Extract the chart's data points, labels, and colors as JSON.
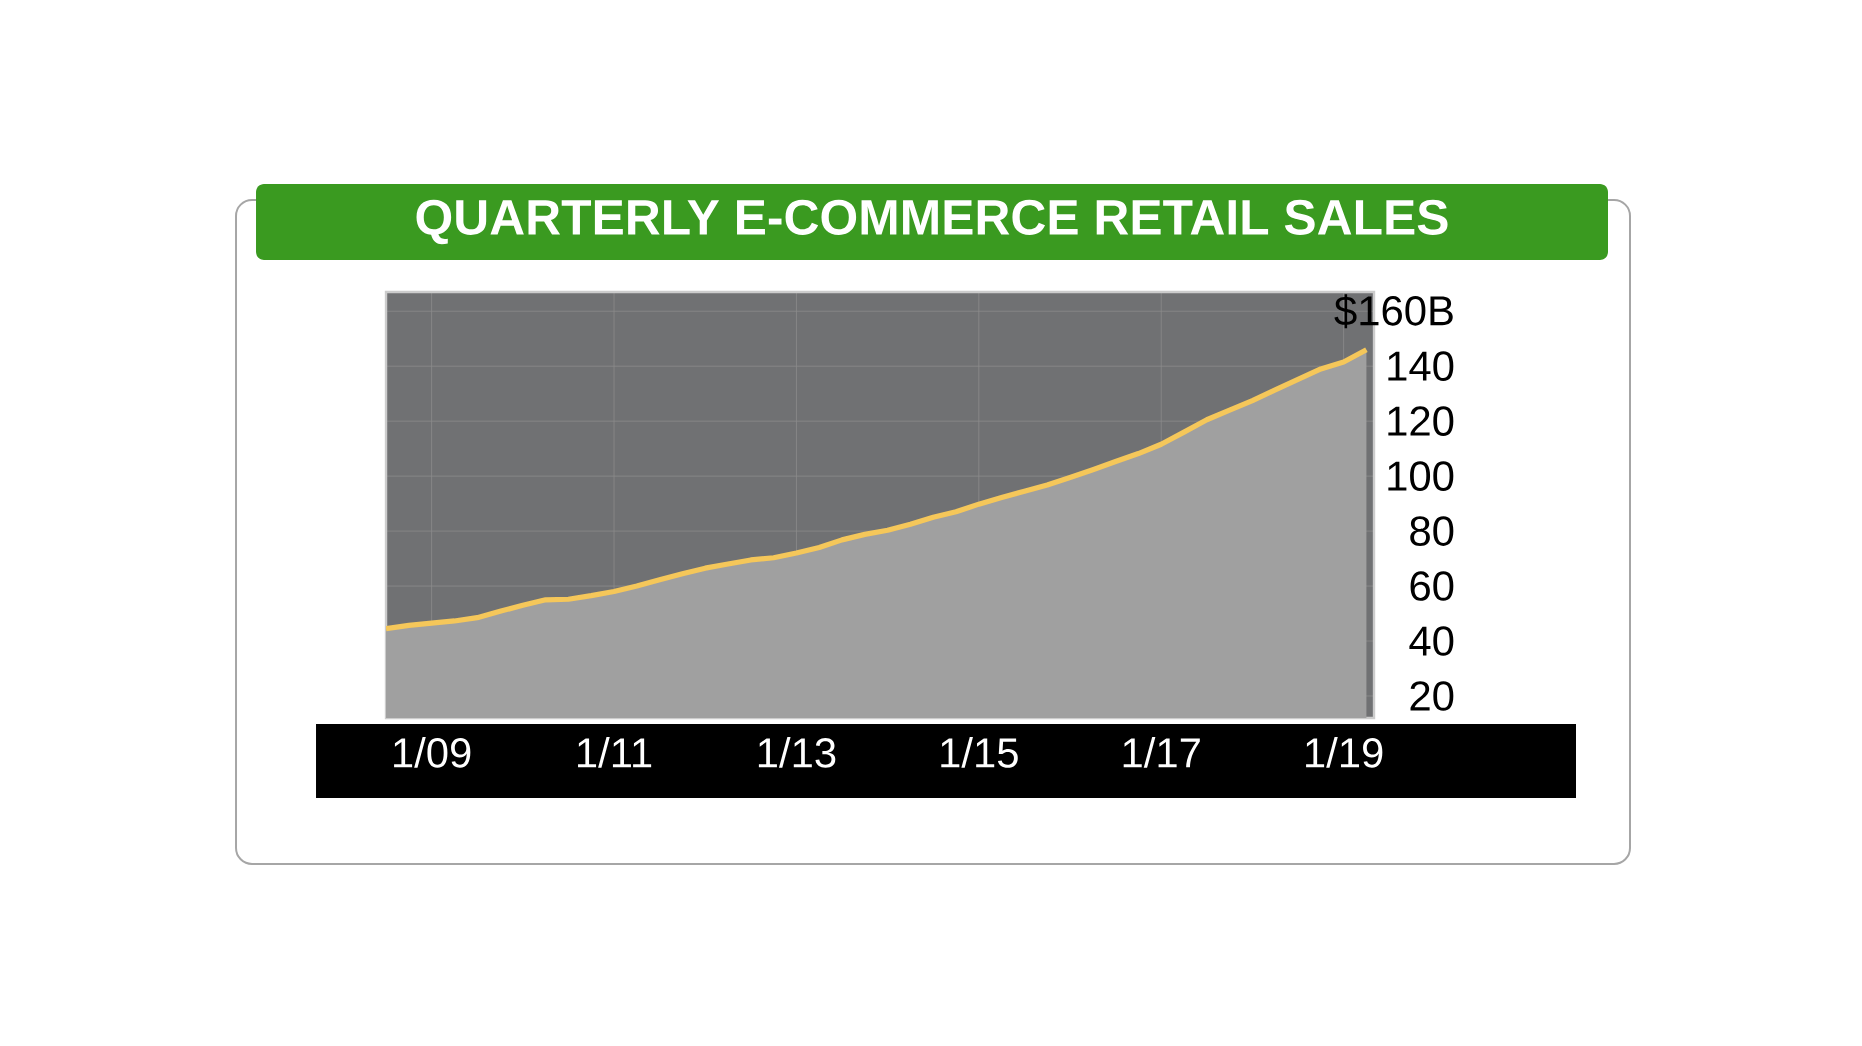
{
  "chart_data": {
    "type": "area",
    "title": "QUARTERLY E-COMMERCE RETAIL SALES",
    "x": [
      "2008-07",
      "2008-10",
      "2009-01",
      "2009-04",
      "2009-07",
      "2009-10",
      "2010-01",
      "2010-04",
      "2010-07",
      "2010-10",
      "2011-01",
      "2011-04",
      "2011-07",
      "2011-10",
      "2012-01",
      "2012-04",
      "2012-07",
      "2012-10",
      "2013-01",
      "2013-04",
      "2013-07",
      "2013-10",
      "2014-01",
      "2014-04",
      "2014-07",
      "2014-10",
      "2015-01",
      "2015-04",
      "2015-07",
      "2015-10",
      "2016-01",
      "2016-04",
      "2016-07",
      "2016-10",
      "2017-01",
      "2017-04",
      "2017-07",
      "2017-10",
      "2018-01",
      "2018-04",
      "2018-07",
      "2018-10",
      "2019-01",
      "2019-04"
    ],
    "series": [
      {
        "color": "#f5c75a",
        "values": [
          44.5,
          45.7,
          46.5,
          47.3,
          48.5,
          50.8,
          53,
          55,
          55.2,
          56.5,
          58,
          60,
          62.3,
          64.5,
          66.5,
          68,
          69.5,
          70.3,
          72,
          74,
          76.8,
          78.8,
          80.3,
          82.5,
          85,
          87,
          89.8,
          92.2,
          94.5,
          96.8,
          99.5,
          102.3,
          105.3,
          108.2,
          111.6,
          116,
          120.5,
          124,
          127.5,
          131.4,
          135.2,
          139,
          141.5,
          146
        ]
      }
    ],
    "xlim": [
      "2008-07",
      "2019-05"
    ],
    "xticks": [
      {
        "value": "2009-01",
        "label": "1/09"
      },
      {
        "value": "2011-01",
        "label": "1/11"
      },
      {
        "value": "2013-01",
        "label": "1/13"
      },
      {
        "value": "2015-01",
        "label": "1/15"
      },
      {
        "value": "2017-01",
        "label": "1/17"
      },
      {
        "value": "2019-01",
        "label": "1/19"
      }
    ],
    "ylim": [
      12,
      167
    ],
    "yticks": [
      20,
      40,
      60,
      80,
      100,
      120,
      140,
      {
        "value": 160,
        "label": "$160B"
      }
    ],
    "grid": true
  }
}
